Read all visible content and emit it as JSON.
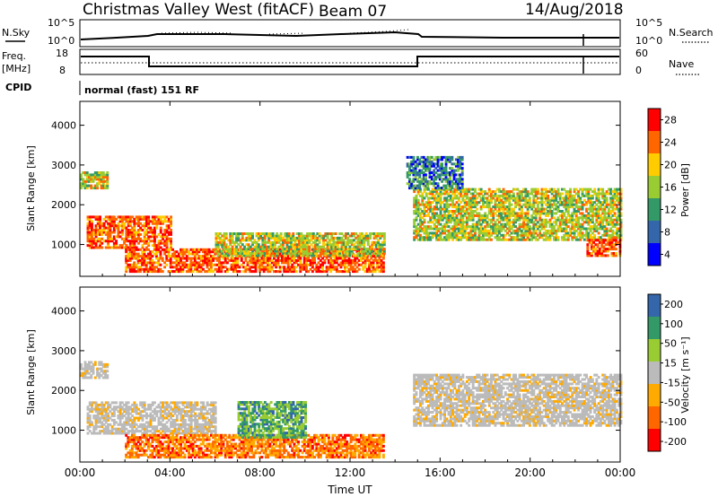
{
  "header": {
    "station": "Christmas Valley West (fitACF)",
    "beam": "Beam 07",
    "date": "14/Aug/2018"
  },
  "noise_panel": {
    "left_label": "N.Sky",
    "left_ticks": [
      "10^5",
      "10^0"
    ],
    "right_label": "N.Search",
    "right_ticks": [
      "10^5",
      "10^0"
    ]
  },
  "freq_panel": {
    "left_label_1": "Freq.",
    "left_label_2": "[MHz]",
    "left_ticks": [
      "18",
      "8"
    ],
    "right_label": "Nave",
    "right_ticks": [
      "60",
      "0"
    ]
  },
  "cpid": {
    "label": "CPID",
    "value": "normal (fast) 151 RF"
  },
  "colors": {
    "power": [
      "#ff0000",
      "#ff6600",
      "#ffcc00",
      "#99cc33",
      "#339966",
      "#3366aa",
      "#0000ff"
    ],
    "velocity": [
      "#ff0000",
      "#ff6600",
      "#ffaa00",
      "#bbbbbb",
      "#99cc33",
      "#339966",
      "#3366aa"
    ]
  },
  "chart_data": [
    {
      "type": "heatmap",
      "ylabel": "Slant Range [km]",
      "xlabel": "",
      "x_ticks": [
        "00:00",
        "04:00",
        "08:00",
        "12:00",
        "16:00",
        "20:00",
        "00:00"
      ],
      "y_ticks": [
        "1000",
        "2000",
        "3000",
        "4000"
      ],
      "ylim": [
        200,
        4600
      ],
      "colorbar_label": "Power [dB]",
      "colorbar_ticks": [
        "28",
        "24",
        "20",
        "16",
        "12",
        "8",
        "4"
      ],
      "regions": [
        {
          "t0": 0.3,
          "t1": 4.0,
          "r0": 900,
          "r1": 1700,
          "level": "high"
        },
        {
          "t0": 2.0,
          "t1": 13.5,
          "r0": 300,
          "r1": 900,
          "level": "high"
        },
        {
          "t0": 6.0,
          "t1": 13.5,
          "r0": 700,
          "r1": 1300,
          "level": "medium"
        },
        {
          "t0": 0.0,
          "t1": 1.2,
          "r0": 2400,
          "r1": 2800,
          "level": "medium"
        },
        {
          "t0": 14.8,
          "t1": 24.0,
          "r0": 1100,
          "r1": 2400,
          "level": "medium"
        },
        {
          "t0": 14.5,
          "t1": 17.0,
          "r0": 2400,
          "r1": 3200,
          "level": "low"
        },
        {
          "t0": 22.5,
          "t1": 24.0,
          "r0": 700,
          "r1": 1100,
          "level": "high"
        }
      ]
    },
    {
      "type": "heatmap",
      "ylabel": "Slant Range [km]",
      "xlabel": "Time UT",
      "x_ticks": [
        "00:00",
        "04:00",
        "08:00",
        "12:00",
        "16:00",
        "20:00",
        "00:00"
      ],
      "y_ticks": [
        "1000",
        "2000",
        "3000",
        "4000"
      ],
      "ylim": [
        200,
        4600
      ],
      "colorbar_label": "Velocity [m s⁻¹]",
      "colorbar_ticks": [
        "200",
        "100",
        "50",
        "15",
        "-15",
        "-50",
        "-100",
        "-200"
      ],
      "regions": [
        {
          "t0": 0.3,
          "t1": 6.0,
          "r0": 900,
          "r1": 1700,
          "level": "ground"
        },
        {
          "t0": 2.0,
          "t1": 13.5,
          "r0": 300,
          "r1": 900,
          "level": "negative"
        },
        {
          "t0": 7.0,
          "t1": 10.0,
          "r0": 800,
          "r1": 1700,
          "level": "positive"
        },
        {
          "t0": 14.8,
          "t1": 24.0,
          "r0": 1100,
          "r1": 2400,
          "level": "ground"
        },
        {
          "t0": 0.0,
          "t1": 1.2,
          "r0": 2300,
          "r1": 2700,
          "level": "ground"
        }
      ]
    }
  ]
}
